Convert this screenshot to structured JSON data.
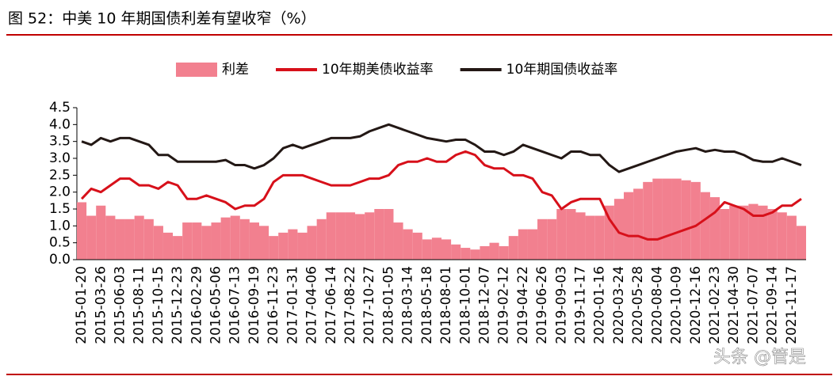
{
  "chart_data": {
    "type": "combo",
    "title": "图 52：中美 10 年期国债利差有望收窄（%）",
    "watermark": "头条 @管是",
    "legend": "top",
    "categories": [
      "2015-01-20",
      null,
      "2015-03-26",
      null,
      "2015-06-03",
      null,
      "2015-08-11",
      null,
      "2015-10-15",
      null,
      "2015-12-23",
      null,
      "2016-02-29",
      null,
      "2016-05-06",
      null,
      "2016-07-13",
      null,
      "2016-09-19",
      null,
      "2016-11-23",
      null,
      "2017-01-31",
      null,
      "2017-04-06",
      null,
      "2017-06-14",
      null,
      "2017-08-22",
      null,
      "2017-10-27",
      null,
      "2018-01-05",
      null,
      "2018-03-14",
      null,
      "2018-05-18",
      null,
      "2018-08-01",
      null,
      "2018-10-01",
      null,
      "2018-12-07",
      null,
      "2019-02-12",
      null,
      "2019-04-22",
      null,
      "2019-06-26",
      null,
      "2019-09-03",
      null,
      "2019-11-17",
      null,
      "2020-01-16",
      null,
      "2020-03-24",
      null,
      "2020-05-28",
      null,
      "2020-08-04",
      null,
      "2020-10-09",
      null,
      "2020-12-16",
      null,
      "2021-02-23",
      null,
      "2021-04-30",
      null,
      "2021-07-07",
      null,
      "2021-09-14",
      null,
      "2021-11-17",
      null
    ],
    "series": [
      {
        "name": "利差",
        "kind": "bar",
        "color": "#f2808f",
        "values": [
          1.7,
          1.3,
          1.6,
          1.3,
          1.2,
          1.2,
          1.3,
          1.2,
          1.0,
          0.8,
          0.7,
          1.1,
          1.1,
          1.0,
          1.1,
          1.25,
          1.3,
          1.2,
          1.1,
          1.0,
          0.7,
          0.8,
          0.9,
          0.8,
          1.0,
          1.2,
          1.4,
          1.4,
          1.4,
          1.35,
          1.4,
          1.5,
          1.5,
          1.1,
          0.9,
          0.8,
          0.6,
          0.65,
          0.6,
          0.45,
          0.35,
          0.3,
          0.4,
          0.5,
          0.4,
          0.7,
          0.9,
          0.9,
          1.2,
          1.2,
          1.5,
          1.5,
          1.4,
          1.3,
          1.3,
          1.6,
          1.8,
          2.0,
          2.1,
          2.3,
          2.4,
          2.4,
          2.4,
          2.35,
          2.3,
          2.0,
          1.85,
          1.5,
          1.6,
          1.6,
          1.65,
          1.6,
          1.5,
          1.4,
          1.3,
          1.0
        ]
      },
      {
        "name": "10年期美债收益率",
        "kind": "line",
        "color": "#d7101a",
        "values": [
          1.8,
          2.1,
          2.0,
          2.2,
          2.4,
          2.4,
          2.2,
          2.2,
          2.1,
          2.3,
          2.2,
          1.8,
          1.8,
          1.9,
          1.8,
          1.7,
          1.5,
          1.6,
          1.6,
          1.8,
          2.3,
          2.5,
          2.5,
          2.5,
          2.4,
          2.3,
          2.2,
          2.2,
          2.2,
          2.3,
          2.4,
          2.4,
          2.5,
          2.8,
          2.9,
          2.9,
          3.0,
          2.9,
          2.9,
          3.1,
          3.2,
          3.1,
          2.8,
          2.7,
          2.7,
          2.5,
          2.5,
          2.4,
          2.0,
          1.9,
          1.5,
          1.7,
          1.8,
          1.8,
          1.8,
          1.2,
          0.8,
          0.7,
          0.7,
          0.6,
          0.6,
          0.7,
          0.8,
          0.9,
          1.0,
          1.2,
          1.4,
          1.7,
          1.6,
          1.5,
          1.3,
          1.3,
          1.4,
          1.6,
          1.6,
          1.8
        ]
      },
      {
        "name": "10年期国债收益率",
        "kind": "line",
        "color": "#231815",
        "values": [
          3.5,
          3.4,
          3.6,
          3.5,
          3.6,
          3.6,
          3.5,
          3.4,
          3.1,
          3.1,
          2.9,
          2.9,
          2.9,
          2.9,
          2.9,
          2.95,
          2.8,
          2.8,
          2.7,
          2.8,
          3.0,
          3.3,
          3.4,
          3.3,
          3.4,
          3.5,
          3.6,
          3.6,
          3.6,
          3.65,
          3.8,
          3.9,
          4.0,
          3.9,
          3.8,
          3.7,
          3.6,
          3.55,
          3.5,
          3.55,
          3.55,
          3.4,
          3.2,
          3.2,
          3.1,
          3.2,
          3.4,
          3.3,
          3.2,
          3.1,
          3.0,
          3.2,
          3.2,
          3.1,
          3.1,
          2.8,
          2.6,
          2.7,
          2.8,
          2.9,
          3.0,
          3.1,
          3.2,
          3.25,
          3.3,
          3.2,
          3.25,
          3.2,
          3.2,
          3.1,
          2.95,
          2.9,
          2.9,
          3.0,
          2.9,
          2.8
        ]
      }
    ],
    "ylim": [
      0,
      4.5
    ],
    "yticks": [
      {
        "value": 0,
        "label": "0.0"
      },
      0.5,
      {
        "value": 1,
        "label": "1.0"
      },
      1.5,
      {
        "value": 2,
        "label": "2.0"
      },
      2.5,
      {
        "value": 3,
        "label": "3.0"
      },
      3.5,
      {
        "value": 4,
        "label": "4.0"
      },
      4.5
    ]
  }
}
